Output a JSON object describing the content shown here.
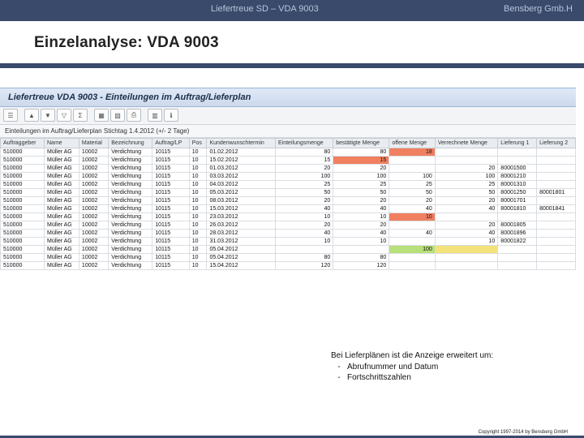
{
  "header": {
    "title": "Liefertreue SD – VDA 9003",
    "brand": "Bensberg Gmb.H"
  },
  "page_title": "Einzelanalyse: VDA 9003",
  "sap": {
    "window_title": "Liefertreue VDA 9003 - Einteilungen im Auftrag/Lieferplan",
    "filter_text": "Einteilungen im Auftrag/Lieferplan   Stichtag 1.4.2012 (+/- 2 Tage)",
    "columns": [
      "Auftraggeber",
      "Name",
      "Material",
      "Bezeichnung",
      "Auftrag/LP",
      "Pos",
      "Kundenwunschtermin",
      "Einteilungsmenge",
      "bestätigte Menge",
      "offene Menge",
      "Verrechnete Menge",
      "Lieferung 1",
      "Lieferung 2"
    ],
    "rows": [
      {
        "c": [
          "510000",
          "Müller AG",
          "10002",
          "Verdichtung",
          "10115",
          "10",
          "01.02.2012",
          "80",
          "80",
          "18",
          "",
          "",
          ""
        ],
        "hl": {
          "9": "red"
        }
      },
      {
        "c": [
          "510000",
          "Müller AG",
          "10002",
          "Verdichtung",
          "10115",
          "10",
          "15.02.2012",
          "15",
          "15",
          "",
          "",
          "",
          ""
        ],
        "hl": {
          "8": "red"
        }
      },
      {
        "c": [
          "510000",
          "Müller AG",
          "10002",
          "Verdichtung",
          "10115",
          "10",
          "01.03.2012",
          "20",
          "20",
          "",
          "20",
          "80001500",
          ""
        ],
        "hl": {}
      },
      {
        "c": [
          "510000",
          "Müller AG",
          "10002",
          "Verdichtung",
          "10115",
          "10",
          "03.03.2012",
          "100",
          "100",
          "100",
          "100",
          "80001210",
          ""
        ],
        "hl": {}
      },
      {
        "c": [
          "510000",
          "Müller AG",
          "10002",
          "Verdichtung",
          "10115",
          "10",
          "04.03.2012",
          "25",
          "25",
          "25",
          "25",
          "80001310",
          ""
        ],
        "hl": {}
      },
      {
        "c": [
          "510000",
          "Müller AG",
          "10002",
          "Verdichtung",
          "10115",
          "10",
          "05.03.2012",
          "50",
          "50",
          "50",
          "50",
          "80001250",
          "80001801"
        ],
        "hl": {}
      },
      {
        "c": [
          "510000",
          "Müller AG",
          "10002",
          "Verdichtung",
          "10115",
          "10",
          "08.03.2012",
          "20",
          "20",
          "20",
          "20",
          "80001701",
          ""
        ],
        "hl": {}
      },
      {
        "c": [
          "510000",
          "Müller AG",
          "10002",
          "Verdichtung",
          "10115",
          "10",
          "15.03.2012",
          "40",
          "40",
          "40",
          "40",
          "80001810",
          "80001841"
        ],
        "hl": {}
      },
      {
        "c": [
          "510000",
          "Müller AG",
          "10002",
          "Verdichtung",
          "10115",
          "10",
          "23.03.2012",
          "10",
          "10",
          "10",
          "",
          "",
          ""
        ],
        "hl": {
          "9": "red"
        }
      },
      {
        "c": [
          "510000",
          "Müller AG",
          "10002",
          "Verdichtung",
          "10115",
          "10",
          "26.03.2012",
          "20",
          "20",
          "",
          "20",
          "80001805",
          ""
        ],
        "hl": {}
      },
      {
        "c": [
          "510000",
          "Müller AG",
          "10002",
          "Verdichtung",
          "10115",
          "10",
          "28.03.2012",
          "40",
          "40",
          "40",
          "40",
          "80001896",
          ""
        ],
        "hl": {}
      },
      {
        "c": [
          "510000",
          "Müller AG",
          "10002",
          "Verdichtung",
          "10115",
          "10",
          "31.03.2012",
          "10",
          "10",
          "",
          "10",
          "80001822",
          ""
        ],
        "hl": {}
      },
      {
        "c": [
          "510000",
          "Müller AG",
          "10002",
          "Verdichtung",
          "10115",
          "10",
          "05.04.2012",
          "",
          "",
          "100",
          "",
          "",
          ""
        ],
        "hl": {
          "9": "grn",
          "10": "yel"
        }
      },
      {
        "c": [
          "510000",
          "Müller AG",
          "10002",
          "Verdichtung",
          "10115",
          "10",
          "05.04.2012",
          "80",
          "80",
          "",
          "",
          "",
          ""
        ],
        "hl": {}
      },
      {
        "c": [
          "510000",
          "Müller AG",
          "10002",
          "Verdichtung",
          "10115",
          "10",
          "15.04.2012",
          "120",
          "120",
          "",
          "",
          "",
          ""
        ],
        "hl": {}
      }
    ],
    "num_cols": [
      7,
      8,
      9,
      10
    ]
  },
  "notes": {
    "intro": "Bei Lieferplänen ist die Anzeige erweitert um:",
    "b1": "Abrufnummer und Datum",
    "b2": "Fortschrittszahlen"
  },
  "copyright": "Copyright 1997-2014 by Bensberg GmbH"
}
